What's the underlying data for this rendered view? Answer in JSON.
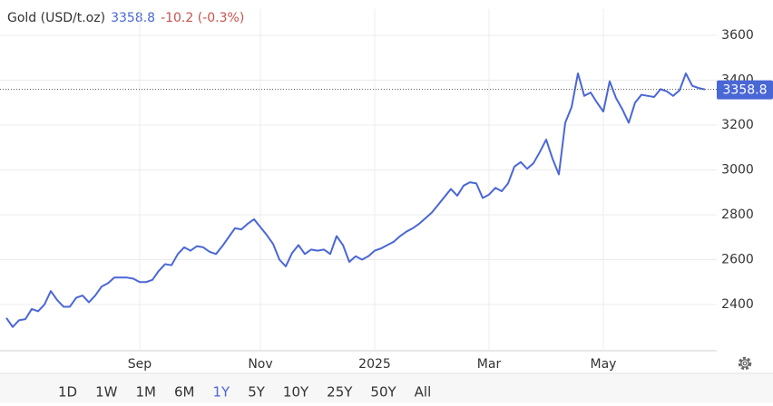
{
  "chart_data": {
    "type": "line",
    "title": "Gold (USD/t.oz)",
    "price": 3358.8,
    "change": "-10.2 (-0.3%)",
    "color": "#4a67d6",
    "grid": true,
    "ylim": [
      2194,
      3717
    ],
    "yticks": [
      2400,
      2600,
      2800,
      3000,
      3200,
      3400,
      3600
    ],
    "categories": [
      null,
      null,
      null,
      null,
      null,
      null,
      null,
      null,
      null,
      null,
      null,
      null,
      null,
      null,
      null,
      null,
      null,
      null,
      null,
      null,
      null,
      "Sep",
      null,
      null,
      null,
      null,
      null,
      null,
      null,
      null,
      null,
      null,
      null,
      null,
      null,
      null,
      null,
      null,
      null,
      null,
      "Nov",
      null,
      null,
      null,
      null,
      null,
      null,
      null,
      null,
      null,
      null,
      null,
      null,
      null,
      null,
      null,
      null,
      null,
      "2025",
      null,
      null,
      null,
      null,
      null,
      null,
      null,
      null,
      null,
      null,
      null,
      null,
      null,
      null,
      null,
      null,
      null,
      "Mar",
      null,
      null,
      null,
      null,
      null,
      null,
      null,
      null,
      null,
      null,
      null,
      null,
      null,
      null,
      null,
      null,
      null,
      "May",
      null,
      null,
      null,
      null,
      null,
      null,
      null,
      null,
      null,
      null,
      null,
      null,
      null,
      null,
      null,
      null
    ],
    "values": [
      2340,
      2300,
      2330,
      2335,
      2380,
      2370,
      2400,
      2460,
      2420,
      2390,
      2390,
      2430,
      2440,
      2410,
      2440,
      2480,
      2495,
      2520,
      2520,
      2520,
      2515,
      2500,
      2500,
      2510,
      2550,
      2580,
      2575,
      2625,
      2655,
      2640,
      2660,
      2655,
      2635,
      2625,
      2660,
      2700,
      2740,
      2735,
      2760,
      2780,
      2745,
      2710,
      2670,
      2600,
      2570,
      2630,
      2665,
      2625,
      2645,
      2640,
      2645,
      2625,
      2705,
      2665,
      2590,
      2615,
      2600,
      2615,
      2640,
      2650,
      2665,
      2680,
      2705,
      2725,
      2740,
      2760,
      2785,
      2810,
      2845,
      2880,
      2915,
      2885,
      2930,
      2945,
      2940,
      2875,
      2890,
      2920,
      2905,
      2940,
      3015,
      3035,
      3005,
      3030,
      3080,
      3135,
      3050,
      2980,
      3210,
      3280,
      3430,
      3330,
      3345,
      3300,
      3260,
      3395,
      3320,
      3270,
      3210,
      3300,
      3335,
      3330,
      3325,
      3360,
      3350,
      3330,
      3355,
      3430,
      3375,
      3365,
      3358.8
    ],
    "ranges": [
      "1D",
      "1W",
      "1M",
      "6M",
      "1Y",
      "5Y",
      "10Y",
      "25Y",
      "50Y",
      "All"
    ],
    "active_range": "1Y"
  }
}
